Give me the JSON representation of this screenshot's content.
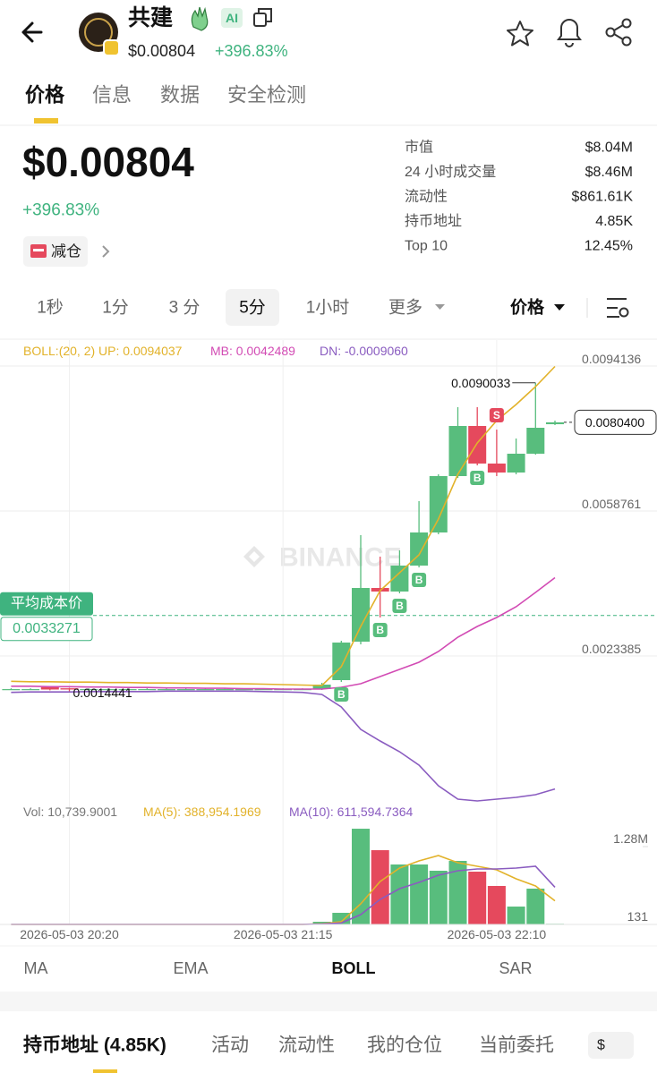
{
  "header": {
    "name": "共建",
    "badge": "AI",
    "price": "$0.00804",
    "change": "+396.83%"
  },
  "tabs": [
    "价格",
    "信息",
    "数据",
    "安全检测"
  ],
  "summary": {
    "price": "$0.00804",
    "change": "+396.83%",
    "action": "减仓"
  },
  "stats": [
    {
      "label": "市值",
      "value": "$8.04M"
    },
    {
      "label": "24 小时成交量",
      "value": "$8.46M"
    },
    {
      "label": "流动性",
      "value": "$861.61K"
    },
    {
      "label": "持币地址",
      "value": "4.85K"
    },
    {
      "label": "Top 10",
      "value": "12.45%"
    }
  ],
  "intervals": [
    "1秒",
    "1分",
    "3 分",
    "5分",
    "1小时",
    "更多"
  ],
  "price_selector": "价格",
  "chart_data": {
    "type": "candlestick",
    "watermark": "BINANCE",
    "x": [
      "2026-05-03 20:05",
      "2026-05-03 20:10",
      "2026-05-03 20:15",
      "2026-05-03 20:20",
      "2026-05-03 20:25",
      "2026-05-03 20:30",
      "2026-05-03 20:35",
      "2026-05-03 20:40",
      "2026-05-03 20:45",
      "2026-05-03 20:50",
      "2026-05-03 20:55",
      "2026-05-03 21:00",
      "2026-05-03 21:05",
      "2026-05-03 21:10",
      "2026-05-03 21:15",
      "2026-05-03 21:20",
      "2026-05-03 21:25",
      "2026-05-03 21:30",
      "2026-05-03 21:35",
      "2026-05-03 21:40",
      "2026-05-03 21:45",
      "2026-05-03 21:50",
      "2026-05-03 21:55",
      "2026-05-03 22:00",
      "2026-05-03 22:05",
      "2026-05-03 22:10",
      "2026-05-03 22:15",
      "2026-05-03 22:20",
      "2026-05-03 22:25"
    ],
    "up_color": "#58bd7d",
    "down_color": "#e5495d",
    "open": [
      0.00153,
      0.00153,
      0.00158,
      0.00155,
      0.00153,
      0.00153,
      0.00153,
      0.00153,
      0.00153,
      0.00153,
      0.00153,
      0.00153,
      0.00153,
      0.00153,
      0.00153,
      0.00153,
      0.001531,
      0.001749,
      0.002688,
      0.003998,
      0.003911,
      0.004544,
      0.005352,
      0.006728,
      0.007951,
      0.007034,
      0.006815,
      0.007274,
      0.007994
    ],
    "high": [
      0.00155,
      0.00155,
      0.00159,
      0.00156,
      0.00155,
      0.00155,
      0.00155,
      0.00155,
      0.00155,
      0.00155,
      0.00155,
      0.00155,
      0.00155,
      0.00155,
      0.00155,
      0.00155,
      0.001684,
      0.00271,
      0.005287,
      0.004763,
      0.004915,
      0.006117,
      0.006771,
      0.008409,
      0.008409,
      0.007863,
      0.007645,
      0.0090033,
      0.008082
    ],
    "low": [
      0.00151,
      0.00151,
      0.0015,
      0.0014441,
      0.00151,
      0.00151,
      0.00151,
      0.00151,
      0.00151,
      0.00151,
      0.00151,
      0.00151,
      0.00151,
      0.00151,
      0.00151,
      0.00151,
      0.001509,
      0.001706,
      0.002622,
      0.003278,
      0.003867,
      0.0045,
      0.005308,
      0.006684,
      0.00699,
      0.006728,
      0.006771,
      0.007252,
      0.007973
    ],
    "close": [
      0.00153,
      0.00153,
      0.00152,
      0.00152,
      0.00153,
      0.00153,
      0.00153,
      0.00153,
      0.00153,
      0.00153,
      0.00153,
      0.00153,
      0.00153,
      0.00153,
      0.00153,
      0.00153,
      0.00164,
      0.002666,
      0.003998,
      0.003911,
      0.004544,
      0.005352,
      0.006728,
      0.007951,
      0.007034,
      0.006815,
      0.007274,
      0.007907,
      0.00804
    ],
    "series": [
      {
        "name": "BOLL:(20, 2) UP: 0.0094037",
        "color": "#e2b22a",
        "values": [
          0.00172,
          0.00171,
          0.00171,
          0.0017,
          0.0017,
          0.00169,
          0.00169,
          0.00168,
          0.00168,
          0.00167,
          0.00167,
          0.00166,
          0.00166,
          0.00165,
          0.00164,
          0.00163,
          0.001618,
          0.002077,
          0.003059,
          0.003933,
          0.004369,
          0.004806,
          0.00568,
          0.006771,
          0.007536,
          0.008082,
          0.008475,
          0.008911,
          0.0094037
        ]
      },
      {
        "name": "MB: 0.0042489",
        "color": "#d24bb4",
        "values": [
          0.0016,
          0.0016,
          0.00159,
          0.00159,
          0.00158,
          0.00158,
          0.00157,
          0.00157,
          0.00156,
          0.00156,
          0.00155,
          0.00155,
          0.00154,
          0.00154,
          0.00153,
          0.00153,
          0.001531,
          0.001575,
          0.001662,
          0.001836,
          0.002011,
          0.002186,
          0.002448,
          0.002797,
          0.003059,
          0.003278,
          0.00354,
          0.003889,
          0.0042489
        ]
      },
      {
        "name": "DN: -0.0009060",
        "color": "#8a5cc0",
        "values": [
          0.00145,
          0.00146,
          0.00146,
          0.00146,
          0.00147,
          0.00147,
          0.00147,
          0.00147,
          0.00148,
          0.00148,
          0.00148,
          0.00148,
          0.00148,
          0.00147,
          0.00146,
          0.00145,
          0.0014,
          0.001094,
          0.000548,
          0.000264,
          2e-06,
          -0.000326,
          -0.000828,
          -0.001155,
          -0.001199,
          -0.001155,
          -0.001112,
          -0.001046,
          -0.000906
        ]
      }
    ],
    "ylim": [
      -0.001308,
      0.010047
    ],
    "yticks": [
      0.0094136,
      0.0058761,
      0.0023385
    ],
    "xticks": [
      "2026-05-03 20:20",
      "2026-05-03 21:15",
      "2026-05-03 22:10"
    ],
    "grid": true,
    "max_label": {
      "x": "2026-05-03 22:20",
      "value": 0.0090033
    },
    "min_label": {
      "x": "2026-05-03 20:20",
      "value": 0.0014441
    },
    "last_price": {
      "value": 0.00804,
      "label": "0.0080400"
    },
    "avg_cost": {
      "label": "平均成本价",
      "value": 0.0033271
    },
    "markers": [
      {
        "label": "B",
        "x": "2026-05-03 21:30"
      },
      {
        "label": "B",
        "x": "2026-05-03 21:40"
      },
      {
        "label": "B",
        "x": "2026-05-03 21:45"
      },
      {
        "label": "B",
        "x": "2026-05-03 21:50"
      },
      {
        "label": "B",
        "x": "2026-05-03 22:05"
      },
      {
        "label": "S",
        "x": "2026-05-03 22:10"
      }
    ],
    "volume": {
      "name": "Vol: 10,739.9001",
      "values": [
        2000,
        2000,
        2000,
        2000,
        2000,
        2000,
        2000,
        2000,
        2000,
        2000,
        2000,
        2000,
        2000,
        2000,
        2000,
        2000,
        44000,
        191000,
        1574000,
        1221000,
        986000,
        986000,
        883000,
        1045000,
        868000,
        633000,
        294000,
        589000,
        10739.9001
      ],
      "series": [
        {
          "name": "MA(5): 388,954.1969",
          "color": "#e2b22a",
          "values": [
            2000,
            2000,
            2000,
            2000,
            2000,
            2000,
            2000,
            2000,
            2000,
            2000,
            2000,
            2000,
            2000,
            2000,
            2000,
            2000,
            10000,
            45000,
            338000,
            706000,
            927000,
            1045000,
            1133000,
            1015000,
            956000,
            897000,
            750000,
            633000,
            388954.1969
          ]
        },
        {
          "name": "MA(10): 611,594.7364",
          "color": "#8a5cc0",
          "values": [
            2000,
            2000,
            2000,
            2000,
            2000,
            2000,
            2000,
            2000,
            2000,
            2000,
            2000,
            2000,
            2000,
            2000,
            2000,
            2000,
            6000,
            25000,
            162000,
            412000,
            589000,
            692000,
            809000,
            883000,
            912000,
            912000,
            927000,
            956000,
            611594.7364
          ]
        }
      ],
      "ylim": [
        0,
        1810000
      ],
      "yticks": [
        {
          "value": 1280000,
          "label": "1.28M"
        },
        131
      ]
    }
  },
  "indicators": [
    "MA",
    "EMA",
    "BOLL",
    "SAR"
  ],
  "bottom_tabs": [
    "持币地址 (4.85K)",
    "活动",
    "流动性",
    "我的仓位",
    "当前委托"
  ],
  "currency": "$"
}
